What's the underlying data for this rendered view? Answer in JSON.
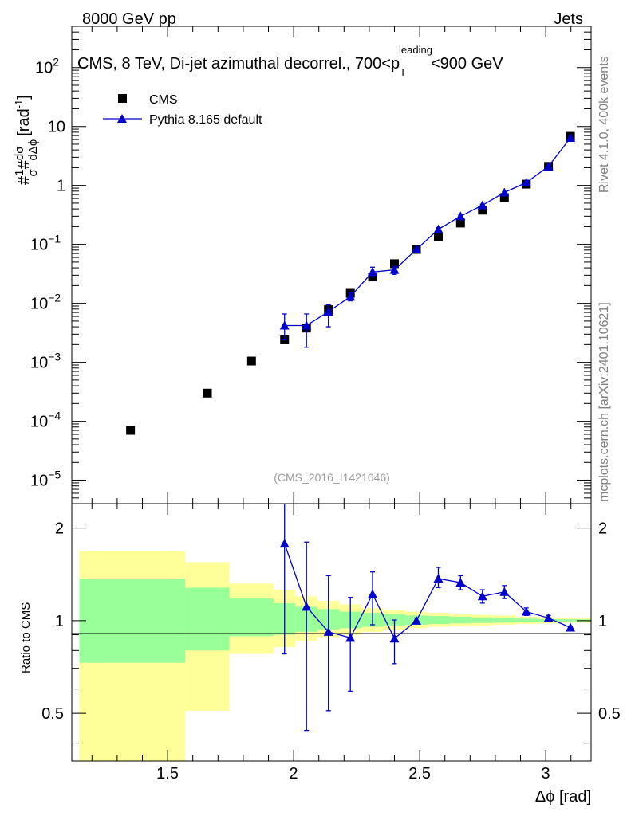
{
  "header": {
    "left_label": "8000 GeV pp",
    "right_label": "Jets"
  },
  "side_labels": {
    "rivet": "Rivet 4.1.0,  400k events",
    "mcplots": "mcplots.cern.ch [arXiv:2401.10621]"
  },
  "chart_data": [
    {
      "type": "scatter",
      "panel": "main",
      "title": "CMS, 8 TeV, Di-jet azimuthal decorrel., 700<p",
      "title_sub": "T",
      "title_sup": "leading",
      "title_end": "<900 GeV",
      "watermark": "(CMS_2016_I1421646)",
      "ylabel_parts": {
        "hash1": "#",
        "frac1_num": "1",
        "frac1_den": "σ",
        "hash2": "#",
        "frac2_num": "dσ",
        "frac2_den": "dΔϕ",
        "unit": "[rad",
        "unit_sup": "-1",
        "unit_close": "]"
      },
      "yscale": "log",
      "ylim": [
        4e-06,
        500
      ],
      "xlim": [
        1.12,
        3.18
      ],
      "ytick_labels": [
        {
          "base": "10",
          "exp": "−5",
          "value": 1e-05
        },
        {
          "base": "10",
          "exp": "−4",
          "value": 0.0001
        },
        {
          "base": "10",
          "exp": "−3",
          "value": 0.001
        },
        {
          "base": "10",
          "exp": "−2",
          "value": 0.01
        },
        {
          "base": "10",
          "exp": "−1",
          "value": 0.1
        },
        {
          "base": "1",
          "exp": "",
          "value": 1
        },
        {
          "base": "10",
          "exp": "",
          "value": 10
        },
        {
          "base": "10",
          "exp": "2",
          "value": 100
        }
      ],
      "legend": [
        {
          "label": "CMS",
          "marker": "square",
          "color": "#000000"
        },
        {
          "label": "Pythia 8.165 default",
          "marker": "triangle",
          "color": "#0000cc"
        }
      ],
      "series": [
        {
          "name": "CMS",
          "x": [
            1.353,
            1.658,
            1.833,
            1.964,
            2.051,
            2.138,
            2.225,
            2.313,
            2.4,
            2.487,
            2.574,
            2.662,
            2.749,
            2.836,
            2.923,
            3.011,
            3.098
          ],
          "y": [
            7e-05,
            0.0003,
            0.00105,
            0.0024,
            0.0038,
            0.0078,
            0.0148,
            0.028,
            0.047,
            0.082,
            0.135,
            0.23,
            0.38,
            0.62,
            1.05,
            2.1,
            6.8
          ]
        },
        {
          "name": "Pythia 8.165 default",
          "x": [
            1.964,
            2.051,
            2.138,
            2.225,
            2.313,
            2.4,
            2.487,
            2.574,
            2.662,
            2.749,
            2.836,
            2.923,
            3.011,
            3.098
          ],
          "y": [
            0.0042,
            0.0042,
            0.0072,
            0.013,
            0.034,
            0.037,
            0.082,
            0.18,
            0.3,
            0.46,
            0.76,
            1.12,
            2.1,
            6.4
          ],
          "yerr_low": [
            0.0018,
            0.0024,
            0.0032,
            0.002,
            0.006,
            0.006,
            0.003,
            0.012,
            0.015,
            0.02,
            0.025,
            0.03,
            0.04,
            0.1
          ],
          "yerr_high": [
            0.0024,
            0.0024,
            0.0022,
            0.002,
            0.007,
            0.005,
            0.003,
            0.012,
            0.015,
            0.02,
            0.025,
            0.03,
            0.04,
            0.1
          ]
        }
      ]
    },
    {
      "type": "line",
      "panel": "ratio",
      "ylabel": "Ratio to CMS",
      "xlabel": "Δϕ [rad]",
      "yscale": "log",
      "ylim": [
        0.35,
        2.4
      ],
      "xlim": [
        1.12,
        3.18
      ],
      "xticks": [
        1.5,
        2,
        2.5,
        3
      ],
      "xtick_labels": [
        "1.5",
        "2",
        "2.5",
        "3"
      ],
      "yticks": [
        0.5,
        1,
        2
      ],
      "ytick_labels": [
        "0.5",
        "1",
        "2"
      ],
      "uncertainty_bands": {
        "bins": [
          [
            1.15,
            1.57
          ],
          [
            1.57,
            1.745
          ],
          [
            1.745,
            1.92
          ],
          [
            1.92,
            2.007
          ],
          [
            2.007,
            2.094
          ],
          [
            2.094,
            2.182
          ],
          [
            2.182,
            2.269
          ],
          [
            2.269,
            2.356
          ],
          [
            2.356,
            2.443
          ],
          [
            2.443,
            2.531
          ],
          [
            2.531,
            2.618
          ],
          [
            2.618,
            2.705
          ],
          [
            2.705,
            2.792
          ],
          [
            2.792,
            2.88
          ],
          [
            2.88,
            2.967
          ],
          [
            2.967,
            3.054
          ],
          [
            3.054,
            3.18
          ]
        ],
        "inner_low": [
          0.73,
          0.8,
          0.89,
          0.9,
          0.92,
          0.935,
          0.945,
          0.955,
          0.965,
          0.97,
          0.975,
          0.98,
          0.983,
          0.986,
          0.989,
          0.992,
          0.994
        ],
        "inner_high": [
          1.37,
          1.28,
          1.18,
          1.14,
          1.11,
          1.09,
          1.07,
          1.06,
          1.05,
          1.04,
          1.035,
          1.03,
          1.025,
          1.02,
          1.015,
          1.012,
          1.01
        ],
        "outer_low": [
          0.33,
          0.51,
          0.78,
          0.82,
          0.86,
          0.885,
          0.9,
          0.92,
          0.935,
          0.945,
          0.955,
          0.96,
          0.965,
          0.97,
          0.975,
          0.98,
          0.985
        ],
        "outer_high": [
          1.68,
          1.55,
          1.32,
          1.26,
          1.2,
          1.16,
          1.13,
          1.1,
          1.08,
          1.07,
          1.06,
          1.05,
          1.045,
          1.04,
          1.03,
          1.025,
          1.02
        ],
        "inner_color": "#99ff99",
        "outer_color": "#ffff99"
      },
      "series": [
        {
          "name": "Pythia 8.165 default / CMS",
          "x": [
            1.964,
            2.051,
            2.138,
            2.225,
            2.313,
            2.4,
            2.487,
            2.574,
            2.662,
            2.749,
            2.836,
            2.923,
            3.011,
            3.098
          ],
          "y": [
            1.78,
            1.11,
            0.92,
            0.88,
            1.22,
            0.875,
            1.0,
            1.37,
            1.33,
            1.2,
            1.24,
            1.07,
            1.02,
            0.95
          ],
          "yerr_low": [
            1.0,
            0.67,
            0.41,
            0.29,
            0.25,
            0.15,
            0.02,
            0.09,
            0.07,
            0.06,
            0.06,
            0.03,
            0.02,
            0.01
          ],
          "yerr_high": [
            0.62,
            0.69,
            0.48,
            0.31,
            0.22,
            0.13,
            0.02,
            0.12,
            0.07,
            0.06,
            0.06,
            0.03,
            0.02,
            0.01
          ],
          "color": "#0000cc"
        }
      ]
    }
  ]
}
